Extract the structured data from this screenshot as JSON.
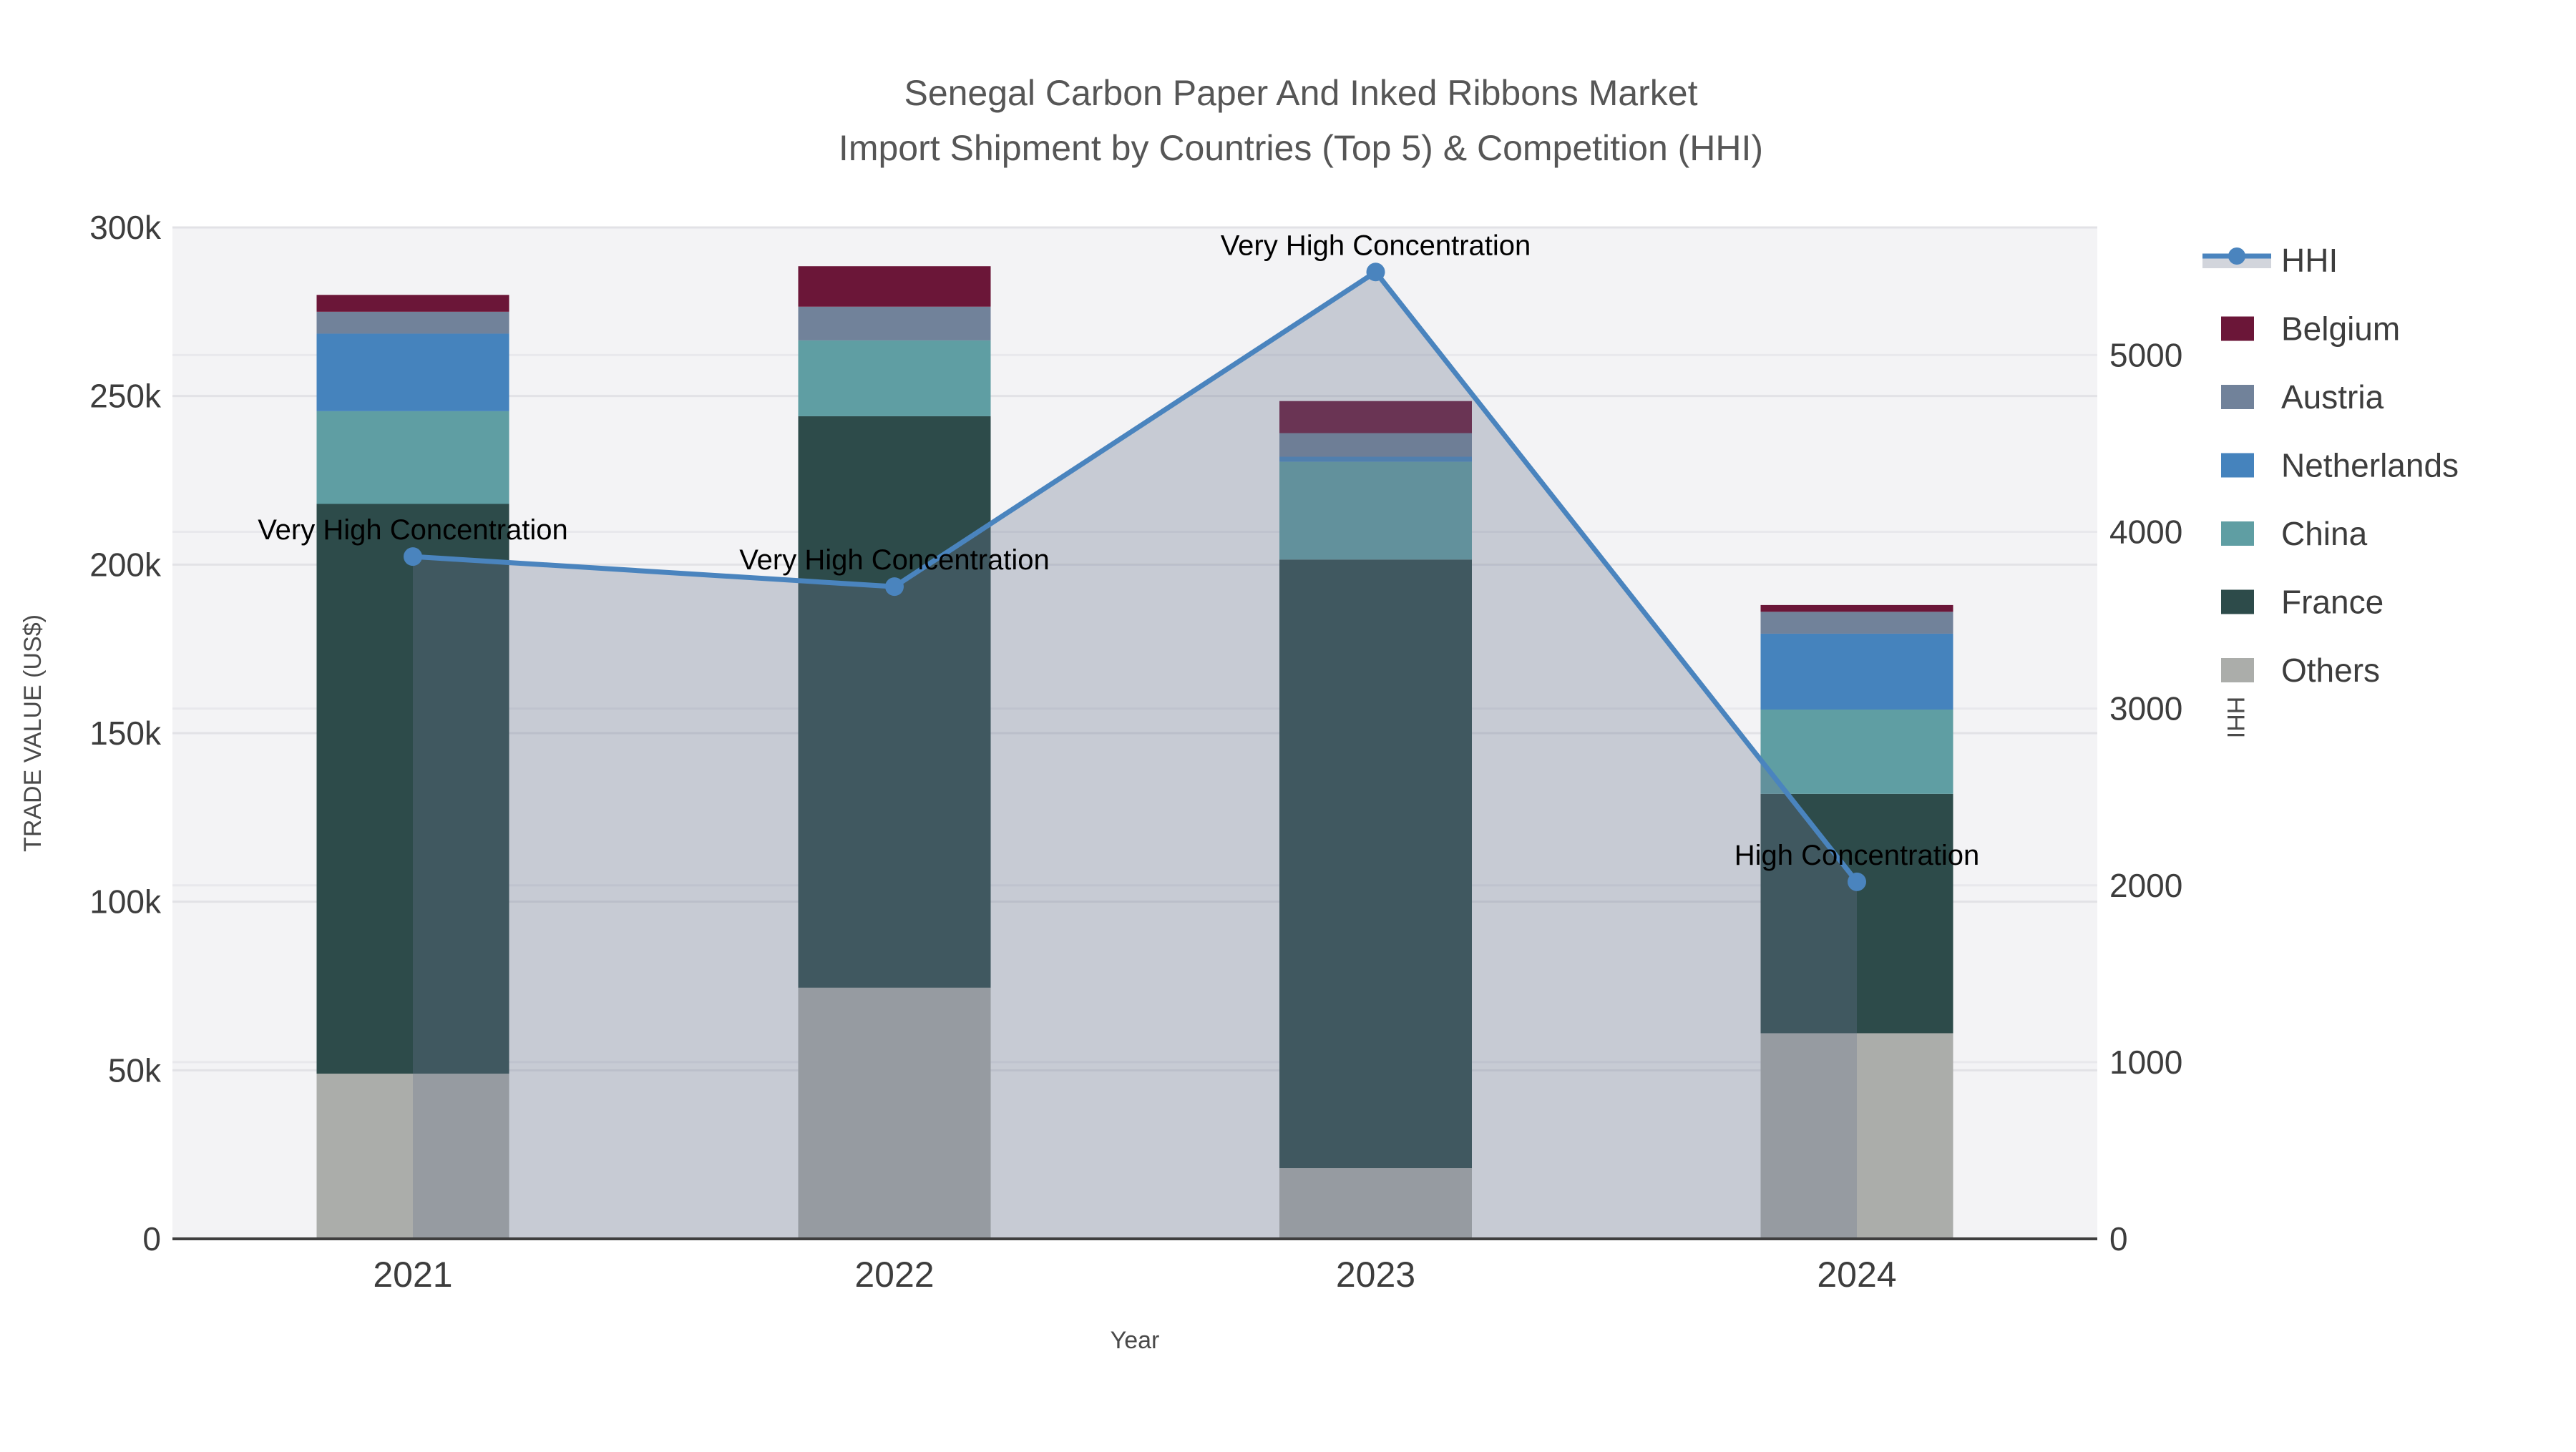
{
  "title": {
    "line1": "Senegal Carbon Paper And Inked Ribbons Market",
    "line2": "Import Shipment by Countries (Top 5) & Competition (HHI)"
  },
  "axes": {
    "x": {
      "label": "Year",
      "categories": [
        "2021",
        "2022",
        "2023",
        "2024"
      ]
    },
    "y_left": {
      "label": "TRADE VALUE (US$)",
      "tick_labels": [
        "0",
        "50k",
        "100k",
        "150k",
        "200k",
        "250k",
        "300k"
      ],
      "tick_values": [
        0,
        50000,
        100000,
        150000,
        200000,
        250000,
        300000
      ],
      "max": 300000
    },
    "y_right": {
      "label": "HHI",
      "tick_labels": [
        "0",
        "1000",
        "2000",
        "3000",
        "4000",
        "5000"
      ],
      "tick_values": [
        0,
        1000,
        2000,
        3000,
        4000,
        5000
      ],
      "max": 5722
    }
  },
  "legend": [
    {
      "label": "HHI",
      "type": "line"
    },
    {
      "label": "Belgium",
      "type": "box"
    },
    {
      "label": "Austria",
      "type": "box"
    },
    {
      "label": "Netherlands",
      "type": "box"
    },
    {
      "label": "China",
      "type": "box"
    },
    {
      "label": "France",
      "type": "box"
    },
    {
      "label": "Others",
      "type": "box"
    }
  ],
  "chart_data": {
    "type": "bar",
    "subtype": "stacked-bars-with-line",
    "categories": [
      "2021",
      "2022",
      "2023",
      "2024"
    ],
    "stack_order_bottom_to_top": [
      "Others",
      "France",
      "China",
      "Netherlands",
      "Austria",
      "Belgium"
    ],
    "series": [
      {
        "name": "Belgium",
        "values": [
          5000,
          12000,
          9500,
          2000
        ]
      },
      {
        "name": "Austria",
        "values": [
          6500,
          10000,
          7000,
          6500
        ]
      },
      {
        "name": "Netherlands",
        "values": [
          23000,
          0,
          1500,
          22500
        ]
      },
      {
        "name": "China",
        "values": [
          27500,
          22500,
          29000,
          25000
        ]
      },
      {
        "name": "France",
        "values": [
          169000,
          169500,
          180500,
          71000
        ]
      },
      {
        "name": "Others",
        "values": [
          49000,
          74500,
          21000,
          61000
        ]
      }
    ],
    "totals": [
      280000,
      288500,
      248500,
      188000
    ],
    "line_series": {
      "name": "HHI",
      "axis": "right",
      "values": [
        3860,
        3690,
        5470,
        2020
      ]
    },
    "annotations": [
      {
        "text": "Very High Concentration",
        "year_index": 0
      },
      {
        "text": "Very High Concentration",
        "year_index": 1
      },
      {
        "text": "Very High Concentration",
        "year_index": 2
      },
      {
        "text": "High Concentration",
        "year_index": 3
      }
    ],
    "xlabel": "Year",
    "ylabel": "TRADE VALUE (US$)",
    "ylabel_right": "HHI",
    "ylim_left": [
      0,
      300000
    ],
    "ylim_right": [
      0,
      5722
    ],
    "grid": true,
    "legend_position": "right"
  },
  "colors": {
    "Belgium": "#6B1638",
    "Austria": "#71829A",
    "Netherlands": "#4583BD",
    "China": "#5F9EA3",
    "France": "#2D4B4A",
    "Others": "#ABADAA",
    "hhi_line": "#4A84BE",
    "hhi_fill": "rgba(105,118,142,0.32)",
    "legend_band": "#D2D5DC",
    "plot_bg": "#F3F3F5",
    "grid_left": "#E2E2E6",
    "grid_right": "#E8E8EC",
    "axis_line": "#3F3F3F",
    "tick_text": "#3D3D3D",
    "title_text": "#565656",
    "annotation_text": "#000000"
  }
}
